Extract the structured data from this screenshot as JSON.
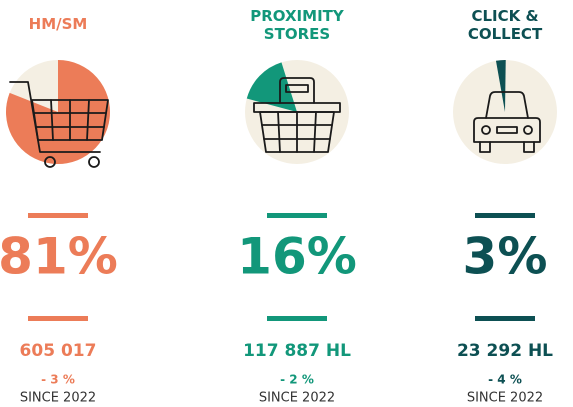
{
  "chart_data": [
    {
      "type": "pie",
      "title": "HM/SM",
      "values": [
        81
      ],
      "value_labels": [
        "81%"
      ],
      "color": "#ec7c58",
      "volume": "605 017",
      "change": "- 3 %",
      "since": "SINCE 2022"
    },
    {
      "type": "pie",
      "title": "PROXIMITY STORES",
      "values": [
        16
      ],
      "value_labels": [
        "16%"
      ],
      "color": "#12977a",
      "volume": "117 887 HL",
      "change": "- 2 %",
      "since": "SINCE  2022"
    },
    {
      "type": "pie",
      "title": "CLICK & COLLECT",
      "values": [
        3
      ],
      "value_labels": [
        "3%"
      ],
      "color": "#0d5053",
      "volume": "23 292 HL",
      "change": "- 4 %",
      "since": "SINCE  2022"
    }
  ]
}
